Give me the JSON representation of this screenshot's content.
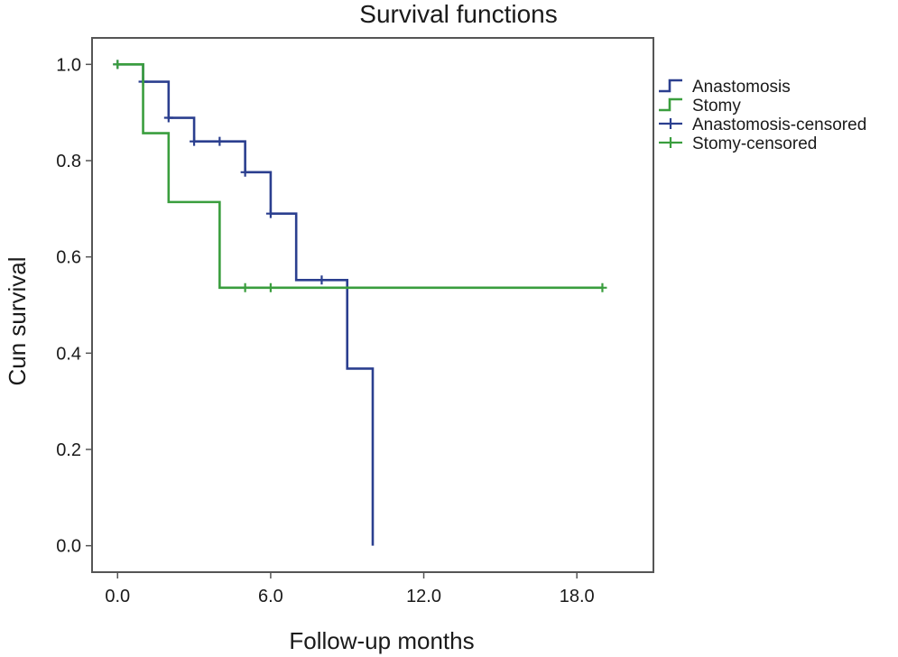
{
  "chart_data": {
    "type": "line",
    "title": "Survival functions",
    "xlabel": "Follow-up months",
    "ylabel": "Cun survival",
    "xlim": [
      -1.0,
      21.0
    ],
    "ylim": [
      -0.055,
      1.055
    ],
    "x_ticks": [
      "0.0",
      "6.0",
      "12.0",
      "18.0"
    ],
    "x_tick_values": [
      0,
      6,
      12,
      18
    ],
    "y_ticks": [
      "0.0",
      "0.2",
      "0.4",
      "0.6",
      "0.8",
      "1.0"
    ],
    "y_tick_values": [
      0,
      0.2,
      0.4,
      0.6,
      0.8,
      1.0
    ],
    "grid": false,
    "legend_position": "outside-right-top",
    "series": [
      {
        "name": "Anastomosis",
        "color": "#2b3f8f",
        "steps": [
          [
            0,
            1.0
          ],
          [
            1,
            0.964
          ],
          [
            2,
            0.889
          ],
          [
            3,
            0.84
          ],
          [
            5,
            0.776
          ],
          [
            6,
            0.69
          ],
          [
            7,
            0.552
          ],
          [
            9,
            0.368
          ],
          [
            10,
            0.0
          ]
        ],
        "end_x": 10,
        "censored": [
          [
            0,
            1.0
          ],
          [
            1,
            0.964
          ],
          [
            2,
            0.889
          ],
          [
            3,
            0.84
          ],
          [
            4,
            0.84
          ],
          [
            5,
            0.776
          ],
          [
            6,
            0.69
          ],
          [
            8,
            0.552
          ]
        ]
      },
      {
        "name": "Stomy",
        "color": "#3a9e3e",
        "steps": [
          [
            0,
            1.0
          ],
          [
            1,
            0.857
          ],
          [
            2,
            0.714
          ],
          [
            4,
            0.536
          ]
        ],
        "end_x": 19,
        "censored": [
          [
            0,
            1.0
          ],
          [
            5,
            0.536
          ],
          [
            6,
            0.536
          ],
          [
            19,
            0.536
          ]
        ]
      }
    ],
    "legend": [
      {
        "label": "Anastomosis",
        "series": 0,
        "kind": "line"
      },
      {
        "label": "Stomy",
        "series": 1,
        "kind": "line"
      },
      {
        "label": "Anastomosis-censored",
        "series": 0,
        "kind": "censor"
      },
      {
        "label": "Stomy-censored",
        "series": 1,
        "kind": "censor"
      }
    ],
    "colors": {
      "frame": "#555555",
      "text": "#1a1a1a"
    }
  }
}
